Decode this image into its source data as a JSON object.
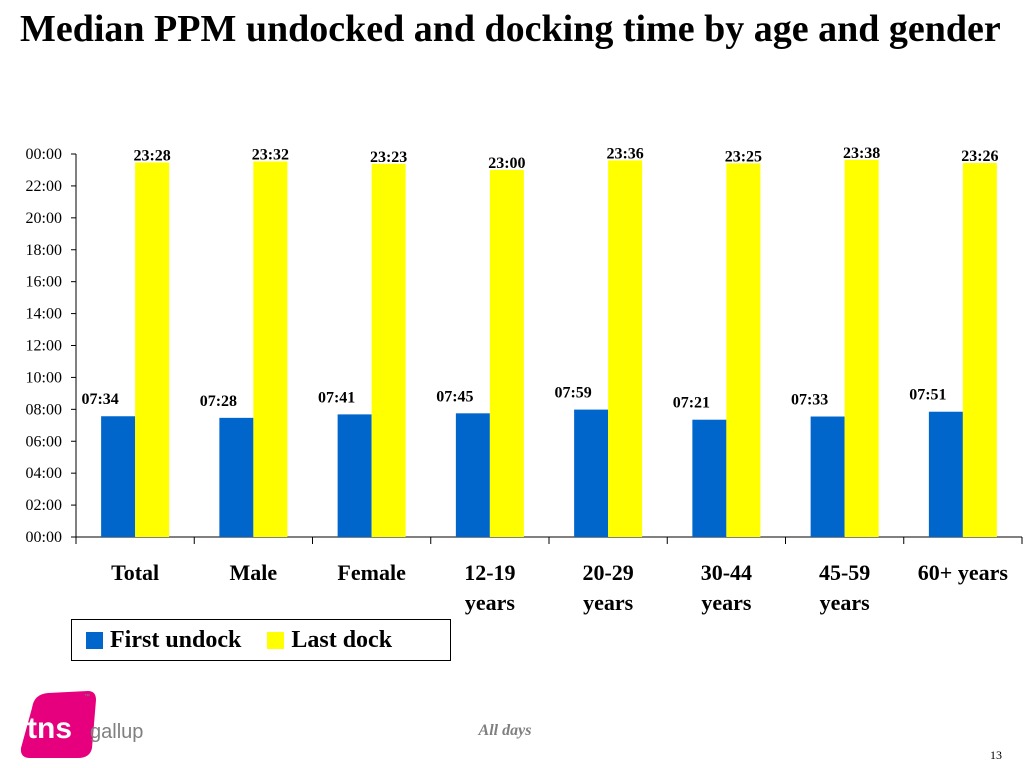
{
  "title": "Median PPM undocked and docking time by age and gender",
  "chart_data": {
    "type": "bar",
    "categories": [
      [
        "Total"
      ],
      [
        "Male"
      ],
      [
        "Female"
      ],
      [
        "12-19",
        "years"
      ],
      [
        "20-29",
        "years"
      ],
      [
        "30-44",
        "years"
      ],
      [
        "45-59",
        "years"
      ],
      [
        "60+ years"
      ]
    ],
    "y_ticks": [
      "00:00",
      "02:00",
      "04:00",
      "06:00",
      "08:00",
      "10:00",
      "12:00",
      "14:00",
      "16:00",
      "18:00",
      "20:00",
      "22:00",
      "00:00"
    ],
    "ylim": [
      "00:00",
      "24:00"
    ],
    "series": [
      {
        "name": "First undock",
        "color": "#0066CC",
        "values": [
          "07:34",
          "07:28",
          "07:41",
          "07:45",
          "07:59",
          "07:21",
          "07:33",
          "07:51"
        ]
      },
      {
        "name": "Last dock",
        "color": "#FFFF00",
        "values": [
          "23:28",
          "23:32",
          "23:23",
          "23:00",
          "23:36",
          "23:25",
          "23:38",
          "23:26"
        ]
      }
    ],
    "grid": false,
    "legend_position": "bottom-left"
  },
  "footer": {
    "note": "All days",
    "page_number": "13"
  },
  "logo": {
    "brand": "tns",
    "sub": "gallup",
    "tm": "™",
    "color": "#E6007E"
  }
}
